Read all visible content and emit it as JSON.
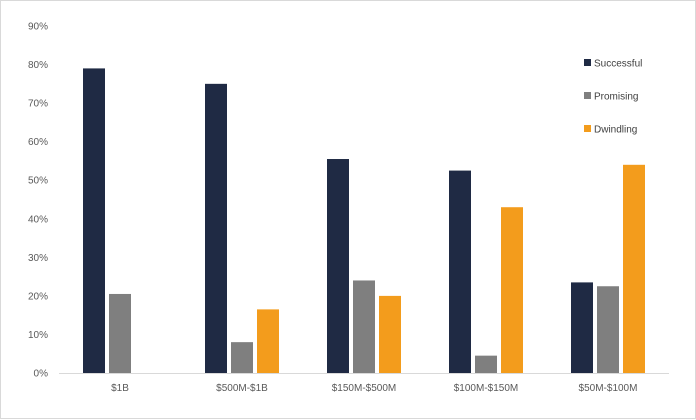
{
  "chart_data": {
    "type": "bar",
    "title": "",
    "xlabel": "",
    "ylabel": "",
    "categories": [
      "$1B",
      "$500M-$1B",
      "$150M-$500M",
      "$100M-$150M",
      "$50M-$100M"
    ],
    "series": [
      {
        "name": "Successful",
        "color": "#1f2a44",
        "values": [
          79,
          75,
          55.5,
          52.5,
          23.5
        ]
      },
      {
        "name": "Promising",
        "color": "#7f7f7f",
        "values": [
          20.5,
          8,
          24,
          4.5,
          22.5
        ]
      },
      {
        "name": "Dwindling",
        "color": "#f39c1c",
        "values": [
          0,
          16.5,
          20,
          43,
          54
        ]
      }
    ],
    "ylim": [
      0,
      90
    ],
    "yticks": [
      "0%",
      "10%",
      "20%",
      "30%",
      "40%",
      "50%",
      "60%",
      "70%",
      "80%",
      "90%"
    ],
    "grid": false,
    "legend_position": "right"
  }
}
